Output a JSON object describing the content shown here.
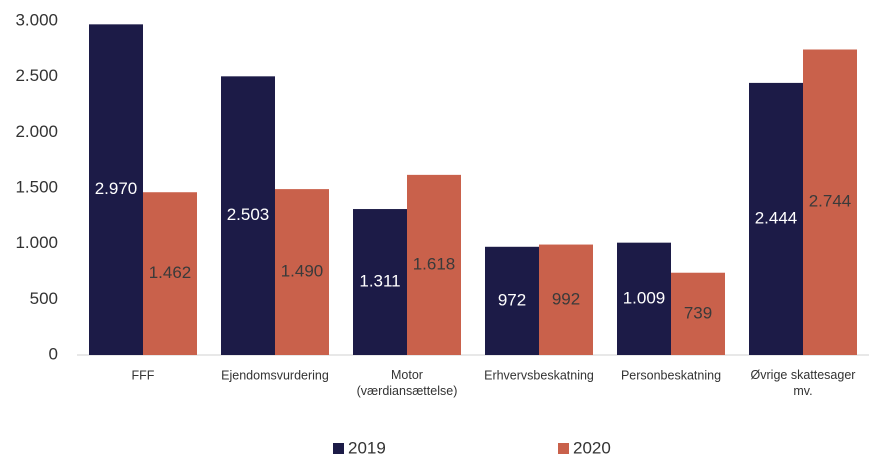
{
  "chart_data": {
    "type": "bar",
    "categories": [
      "FFF",
      "Ejendomsvurdering",
      "Motor\n(værdiansættelse)",
      "Erhvervsbeskatning",
      "Personbeskatning",
      "Øvrige skattesager\nmv."
    ],
    "series": [
      {
        "name": "2019",
        "color": "#1c1b47",
        "values": [
          2970,
          2503,
          1311,
          972,
          1009,
          2444
        ],
        "value_labels": [
          "2.970",
          "2.503",
          "1.311",
          "972",
          "1.009",
          "2.444"
        ]
      },
      {
        "name": "2020",
        "color": "#c9614b",
        "values": [
          1462,
          1490,
          1618,
          992,
          739,
          2744
        ],
        "value_labels": [
          "1.462",
          "1.490",
          "1.618",
          "992",
          "739",
          "2.744"
        ]
      }
    ],
    "ylim": [
      0,
      3000
    ],
    "yticks": [
      0,
      500,
      {
        "value": 1000,
        "label": "1.000"
      },
      {
        "value": 1500,
        "label": "1.500"
      },
      {
        "value": 2000,
        "label": "2.000"
      },
      {
        "value": 2500,
        "label": "2.500"
      },
      {
        "value": 3000,
        "label": "3.000"
      }
    ],
    "grid": false,
    "legend": "bottom"
  }
}
